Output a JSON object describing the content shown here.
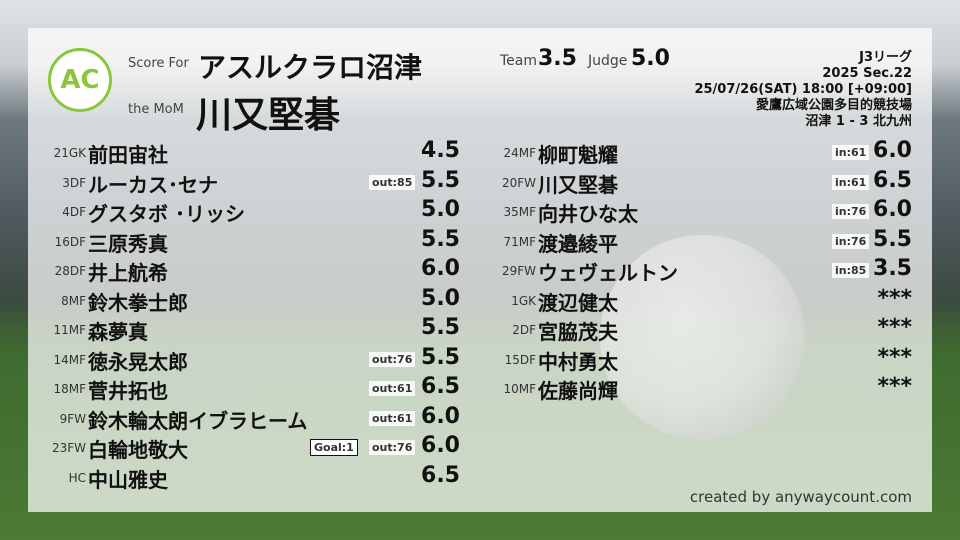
{
  "header": {
    "logo_text": "AC",
    "logo_ring": "ANYWAY COUNT",
    "score_for_label": "Score For",
    "team": "アスルクラロ沼津",
    "mom_label": "the MoM",
    "mom": "川又堅碁",
    "team_label": "Team",
    "team_score": "3.5",
    "judge_label": "Judge",
    "judge_score": "5.0"
  },
  "info": {
    "league": "J3リーグ",
    "season": "2025 Sec.22",
    "datetime": "25/07/26(SAT) 18:00 [+09:00]",
    "venue": "愛鷹広域公園多目的競技場",
    "result": "沼津 1 - 3 北九州"
  },
  "left": [
    {
      "num": "21GK",
      "name": "前田宙社",
      "score": "4.5"
    },
    {
      "num": "3DF",
      "name": "ルーカス･セナ",
      "score": "5.5",
      "out": "out:85"
    },
    {
      "num": "4DF",
      "name": "グスタボ ･リッシ",
      "score": "5.0"
    },
    {
      "num": "16DF",
      "name": "三原秀真",
      "score": "5.5"
    },
    {
      "num": "28DF",
      "name": "井上航希",
      "score": "6.0"
    },
    {
      "num": "8MF",
      "name": "鈴木拳士郎",
      "score": "5.0"
    },
    {
      "num": "11MF",
      "name": "森夢真",
      "score": "5.5"
    },
    {
      "num": "14MF",
      "name": "徳永晃太郎",
      "score": "5.5",
      "out": "out:76"
    },
    {
      "num": "18MF",
      "name": "菅井拓也",
      "score": "6.5",
      "out": "out:61"
    },
    {
      "num": "9FW",
      "name": "鈴木輪太朗イブラヒーム",
      "score": "6.0",
      "out": "out:61"
    },
    {
      "num": "23FW",
      "name": "白輪地敬大",
      "score": "6.0",
      "out": "out:76",
      "goal": "Goal:1"
    },
    {
      "num": "HC",
      "name": "中山雅史",
      "score": "6.5"
    }
  ],
  "right": [
    {
      "num": "24MF",
      "name": "柳町魁耀",
      "score": "6.0",
      "in": "in:61"
    },
    {
      "num": "20FW",
      "name": "川又堅碁",
      "score": "6.5",
      "in": "in:61"
    },
    {
      "num": "35MF",
      "name": "向井ひな太",
      "score": "6.0",
      "in": "in:76"
    },
    {
      "num": "71MF",
      "name": "渡邉綾平",
      "score": "5.5",
      "in": "in:76"
    },
    {
      "num": "29FW",
      "name": "ウェヴェルトン",
      "score": "3.5",
      "in": "in:85"
    },
    {
      "num": "1GK",
      "name": "渡辺健太",
      "score": "***"
    },
    {
      "num": "2DF",
      "name": "宮脇茂夫",
      "score": "***"
    },
    {
      "num": "15DF",
      "name": "中村勇太",
      "score": "***"
    },
    {
      "num": "10MF",
      "name": "佐藤尚輝",
      "score": "***"
    }
  ],
  "footer": {
    "credit": "created by anywaycount.com"
  }
}
